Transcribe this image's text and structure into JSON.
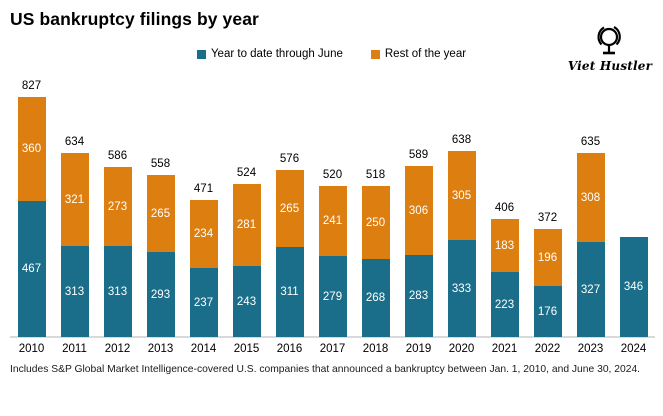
{
  "title": "US bankruptcy filings by year",
  "legend": [
    {
      "label": "Year to date through June",
      "color": "#1A6E8A"
    },
    {
      "label": "Rest of the year",
      "color": "#DD7E10"
    }
  ],
  "brand": {
    "name": "Viet Hustler",
    "icon": "globe-icon"
  },
  "footnote": "Includes S&P Global Market Intelligence-covered U.S. companies that announced a bankruptcy between Jan. 1, 2010, and June 30, 2024.",
  "chart_data": {
    "type": "bar",
    "stacked": true,
    "title": "US bankruptcy filings by year",
    "categories": [
      "2010",
      "2011",
      "2012",
      "2013",
      "2014",
      "2015",
      "2016",
      "2017",
      "2018",
      "2019",
      "2020",
      "2021",
      "2022",
      "2023",
      "2024"
    ],
    "series": [
      {
        "name": "Year to date through June",
        "color": "#1A6E8A",
        "values": [
          467,
          313,
          313,
          293,
          237,
          243,
          311,
          279,
          268,
          283,
          333,
          223,
          176,
          327,
          346
        ]
      },
      {
        "name": "Rest of the year",
        "color": "#DD7E10",
        "values": [
          360,
          321,
          273,
          265,
          234,
          281,
          265,
          241,
          250,
          306,
          305,
          183,
          196,
          308,
          null
        ]
      }
    ],
    "totals": [
      827,
      634,
      586,
      558,
      471,
      524,
      576,
      520,
      518,
      589,
      638,
      406,
      372,
      635,
      null
    ],
    "xlabel": "",
    "ylabel": "",
    "ylim": [
      0,
      827
    ],
    "grid": false,
    "legend_position": "top-center",
    "value_labels": "inside-segments-white",
    "total_labels": "above-bars"
  }
}
